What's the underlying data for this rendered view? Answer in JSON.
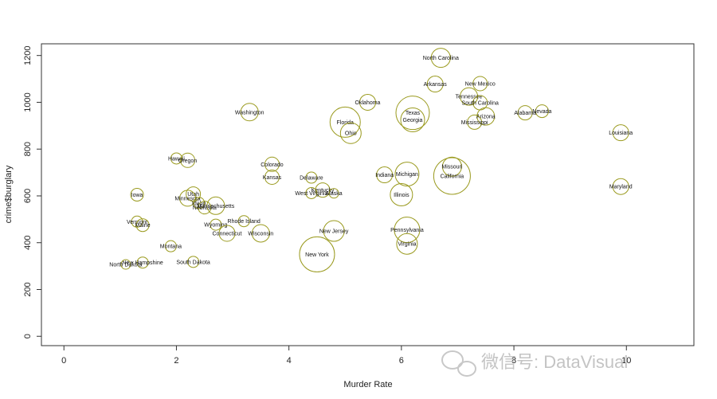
{
  "chart_data": {
    "type": "scatter",
    "title": "",
    "xlabel": "Murder Rate",
    "ylabel": "crime$burglary",
    "xlim": [
      -0.4,
      11.2
    ],
    "ylim": [
      -40,
      1250
    ],
    "x_ticks": [
      "0",
      "2",
      "4",
      "6",
      "8",
      "10"
    ],
    "y_ticks": [
      "0",
      "200",
      "400",
      "600",
      "800",
      "1000",
      "1200"
    ],
    "grid": false,
    "legend": "none",
    "marker_color": "#9a9a1e",
    "points": [
      {
        "label": "North Carolina",
        "x": 6.7,
        "y": 1190,
        "size": 1.2
      },
      {
        "label": "Arkansas",
        "x": 6.6,
        "y": 1078,
        "size": 1.0
      },
      {
        "label": "New Mexico",
        "x": 7.4,
        "y": 1080,
        "size": 0.9
      },
      {
        "label": "Tennessee",
        "x": 7.2,
        "y": 1025,
        "size": 1.1
      },
      {
        "label": "South Carolina",
        "x": 7.4,
        "y": 998,
        "size": 0.9
      },
      {
        "label": "Oklahoma",
        "x": 5.4,
        "y": 1000,
        "size": 1.0
      },
      {
        "label": "Nevada",
        "x": 8.5,
        "y": 962,
        "size": 0.8
      },
      {
        "label": "Alabama",
        "x": 8.2,
        "y": 955,
        "size": 0.9
      },
      {
        "label": "Arizona",
        "x": 7.5,
        "y": 940,
        "size": 1.1
      },
      {
        "label": "Mississippi",
        "x": 7.3,
        "y": 915,
        "size": 0.9
      },
      {
        "label": "Texas",
        "x": 6.2,
        "y": 955,
        "size": 2.1
      },
      {
        "label": "Georgia",
        "x": 6.2,
        "y": 925,
        "size": 1.5
      },
      {
        "label": "Florida",
        "x": 5.0,
        "y": 915,
        "size": 1.9
      },
      {
        "label": "Ohio",
        "x": 5.1,
        "y": 868,
        "size": 1.3
      },
      {
        "label": "Washington",
        "x": 3.3,
        "y": 958,
        "size": 1.1
      },
      {
        "label": "Louisiana",
        "x": 9.9,
        "y": 870,
        "size": 1.0
      },
      {
        "label": "Hawaii",
        "x": 2.0,
        "y": 760,
        "size": 0.7
      },
      {
        "label": "Oregon",
        "x": 2.2,
        "y": 752,
        "size": 0.9
      },
      {
        "label": "Colorado",
        "x": 3.7,
        "y": 735,
        "size": 0.9
      },
      {
        "label": "Kansas",
        "x": 3.7,
        "y": 680,
        "size": 0.9
      },
      {
        "label": "Delaware",
        "x": 4.4,
        "y": 678,
        "size": 0.7
      },
      {
        "label": "Indiana",
        "x": 5.7,
        "y": 690,
        "size": 1.0
      },
      {
        "label": "Michigan",
        "x": 6.1,
        "y": 693,
        "size": 1.5
      },
      {
        "label": "Missouri",
        "x": 6.9,
        "y": 725,
        "size": 1.2
      },
      {
        "label": "California",
        "x": 6.9,
        "y": 685,
        "size": 2.3
      },
      {
        "label": "Maryland",
        "x": 9.9,
        "y": 640,
        "size": 1.0
      },
      {
        "label": "Kentucky",
        "x": 4.6,
        "y": 625,
        "size": 0.9
      },
      {
        "label": "West Virginia",
        "x": 4.4,
        "y": 612,
        "size": 0.7
      },
      {
        "label": "Alaska",
        "x": 4.8,
        "y": 611,
        "size": 0.6
      },
      {
        "label": "Illinois",
        "x": 6.0,
        "y": 605,
        "size": 1.4
      },
      {
        "label": "Iowa",
        "x": 1.3,
        "y": 605,
        "size": 0.8
      },
      {
        "label": "Utah",
        "x": 2.3,
        "y": 608,
        "size": 0.9
      },
      {
        "label": "Minnesota",
        "x": 2.2,
        "y": 590,
        "size": 1.0
      },
      {
        "label": "Idaho",
        "x": 2.4,
        "y": 570,
        "size": 0.7
      },
      {
        "label": "Nebraska",
        "x": 2.5,
        "y": 550,
        "size": 0.8
      },
      {
        "label": "Massachusetts",
        "x": 2.7,
        "y": 558,
        "size": 1.1
      },
      {
        "label": "Vermont",
        "x": 1.3,
        "y": 490,
        "size": 0.7
      },
      {
        "label": "Maine",
        "x": 1.4,
        "y": 475,
        "size": 0.8
      },
      {
        "label": "Rhode Island",
        "x": 3.2,
        "y": 492,
        "size": 0.7
      },
      {
        "label": "Wyoming",
        "x": 2.7,
        "y": 477,
        "size": 0.7
      },
      {
        "label": "Connecticut",
        "x": 2.9,
        "y": 440,
        "size": 1.0
      },
      {
        "label": "Wisconsin",
        "x": 3.5,
        "y": 440,
        "size": 1.1
      },
      {
        "label": "New Jersey",
        "x": 4.8,
        "y": 450,
        "size": 1.3
      },
      {
        "label": "Pennsylvania",
        "x": 6.1,
        "y": 455,
        "size": 1.6
      },
      {
        "label": "Virginia",
        "x": 6.1,
        "y": 395,
        "size": 1.3
      },
      {
        "label": "Montana",
        "x": 1.9,
        "y": 385,
        "size": 0.7
      },
      {
        "label": "New York",
        "x": 4.5,
        "y": 350,
        "size": 2.2
      },
      {
        "label": "New Hampshine",
        "x": 1.4,
        "y": 315,
        "size": 0.7
      },
      {
        "label": "North Dakota",
        "x": 1.1,
        "y": 307,
        "size": 0.6
      },
      {
        "label": "South Dakota",
        "x": 2.3,
        "y": 318,
        "size": 0.7
      }
    ]
  },
  "watermark": {
    "text": "微信号: DataVisual",
    "icon": "wechat-icon"
  }
}
